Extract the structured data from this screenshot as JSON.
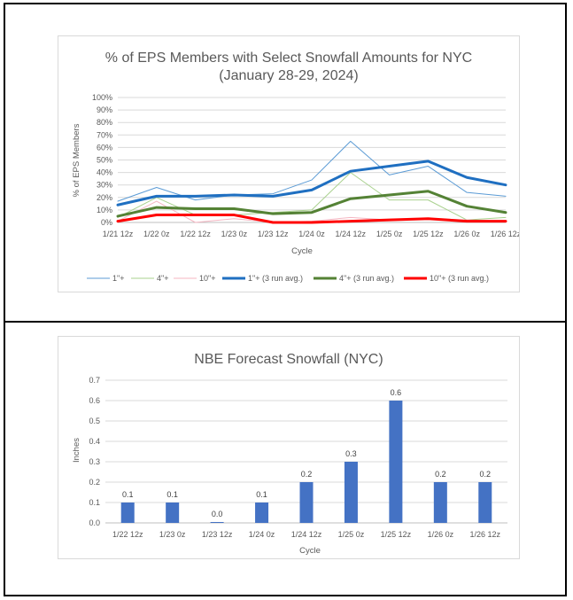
{
  "chart_data": [
    {
      "type": "line",
      "title": "% of EPS Members with Select Snowfall Amounts for NYC",
      "subtitle": "(January 28-29, 2024)",
      "xlabel": "Cycle",
      "ylabel": "% of EPS Members",
      "categories": [
        "1/21 12z",
        "1/22 0z",
        "1/22 12z",
        "1/23 0z",
        "1/23 12z",
        "1/24 0z",
        "1/24 12z",
        "1/25 0z",
        "1/25 12z",
        "1/26 0z",
        "1/26 12z"
      ],
      "yticks": [
        "0%",
        "10%",
        "20%",
        "30%",
        "40%",
        "50%",
        "60%",
        "70%",
        "80%",
        "90%",
        "100%"
      ],
      "ylim": [
        0,
        100
      ],
      "grid": true,
      "legend": "bottom",
      "series": [
        {
          "name": "1\"+",
          "color": "#5b9bd5",
          "width": 1,
          "values": [
            17,
            28,
            18,
            22,
            23,
            34,
            65,
            38,
            45,
            24,
            21
          ]
        },
        {
          "name": "4\"+",
          "color": "#a9d18e",
          "width": 1,
          "values": [
            4,
            20,
            6,
            6,
            8,
            10,
            40,
            18,
            18,
            2,
            4
          ]
        },
        {
          "name": "10\"+",
          "color": "#f4b6c2",
          "width": 1,
          "values": [
            1,
            17,
            0,
            3,
            0,
            1,
            4,
            2,
            3,
            2,
            1
          ]
        },
        {
          "name": "1\"+ (3 run avg.)",
          "color": "#1f6fc1",
          "width": 3,
          "values": [
            14,
            21,
            21,
            22,
            21,
            26,
            41,
            45,
            49,
            36,
            30
          ]
        },
        {
          "name": "4\"+ (3 run avg.)",
          "color": "#548235",
          "width": 3,
          "values": [
            5,
            12,
            11,
            11,
            7,
            8,
            19,
            22,
            25,
            13,
            8
          ]
        },
        {
          "name": "10\"+ (3 run avg.)",
          "color": "#ff0000",
          "width": 3,
          "values": [
            1,
            6,
            6,
            6,
            0,
            0,
            1,
            2,
            3,
            1,
            1
          ]
        }
      ]
    },
    {
      "type": "bar",
      "title": "NBE Forecast Snowfall (NYC)",
      "xlabel": "Cycle",
      "ylabel": "Inches",
      "categories": [
        "1/22 12z",
        "1/23 0z",
        "1/23 12z",
        "1/24 0z",
        "1/24 12z",
        "1/25 0z",
        "1/25 12z",
        "1/26 0z",
        "1/26 12z"
      ],
      "values": [
        0.1,
        0.1,
        0.003,
        0.1,
        0.2,
        0.3,
        0.6,
        0.2,
        0.2
      ],
      "data_labels": [
        "0.1",
        "0.1",
        "0.0",
        "0.1",
        "0.2",
        "0.3",
        "0.6",
        "0.2",
        "0.2"
      ],
      "yticks": [
        "0.0",
        "0.1",
        "0.2",
        "0.3",
        "0.4",
        "0.5",
        "0.6",
        "0.7"
      ],
      "ylim": [
        0,
        0.7
      ],
      "grid": true,
      "color": "#4472c4"
    }
  ]
}
